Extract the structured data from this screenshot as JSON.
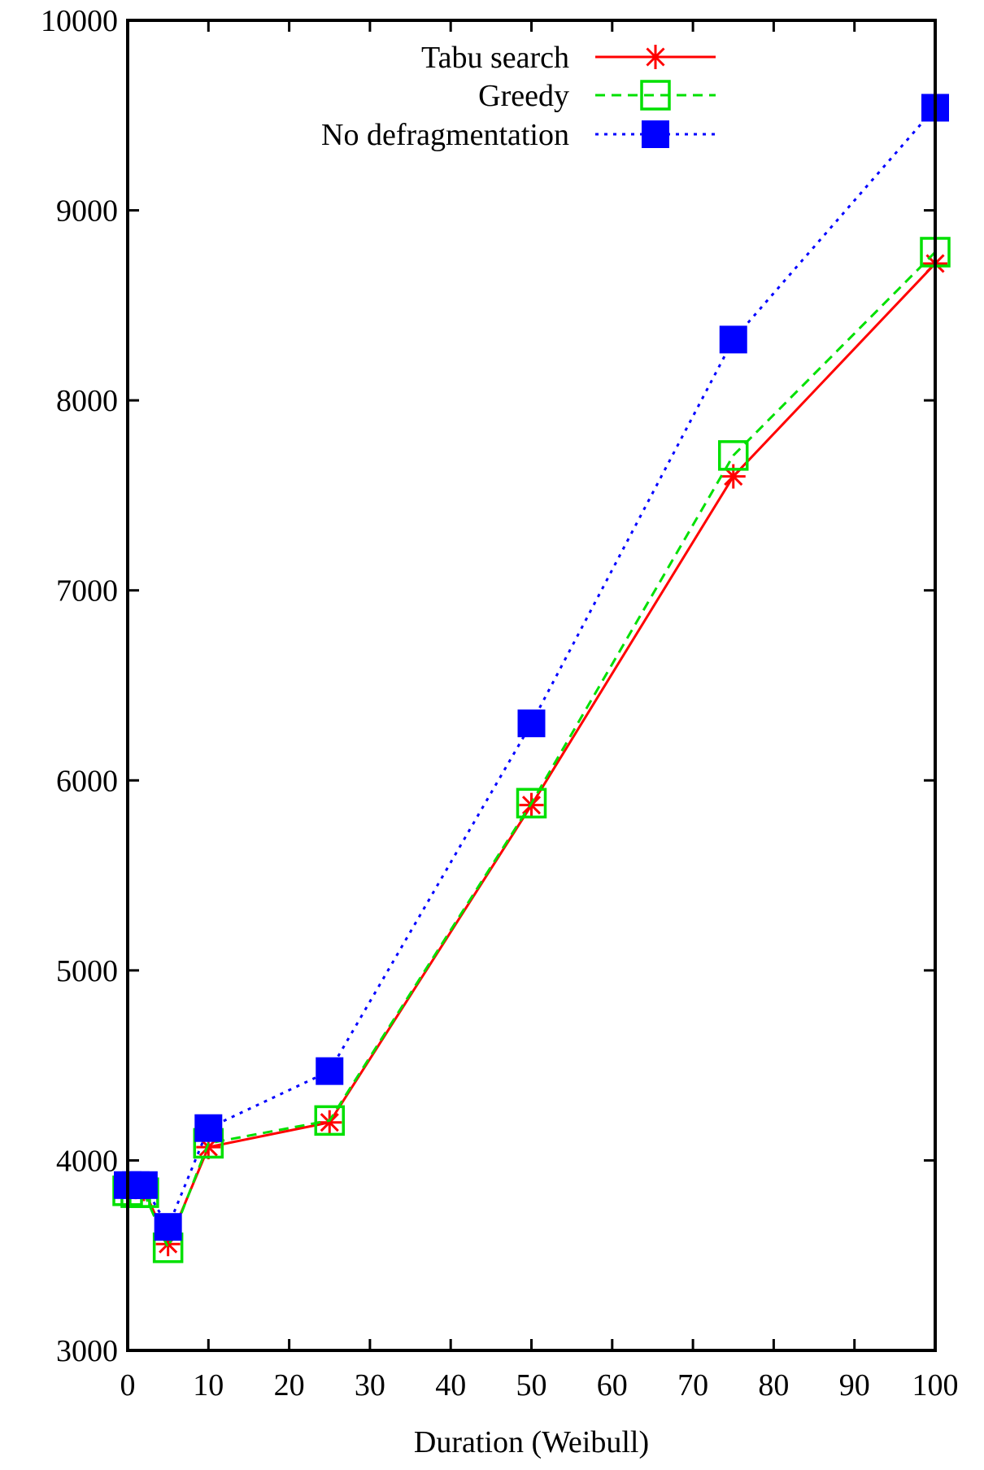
{
  "chart_data": {
    "type": "line",
    "title": "",
    "xlabel": "Duration (Weibull)",
    "ylabel": "",
    "xlim": [
      0,
      100
    ],
    "ylim": [
      3000,
      10000
    ],
    "xticks": [
      0,
      10,
      20,
      30,
      40,
      50,
      60,
      70,
      80,
      90,
      100
    ],
    "yticks": [
      3000,
      4000,
      5000,
      6000,
      7000,
      8000,
      9000,
      10000
    ],
    "xtick_labels": [
      "0",
      "10",
      "20",
      "30",
      "40",
      "50",
      "60",
      "70",
      "80",
      "90",
      "100"
    ],
    "ytick_labels": [
      "3000",
      "4000",
      "5000",
      "6000",
      "7000",
      "8000",
      "9000",
      "10000"
    ],
    "grid": false,
    "legend_position": "top-right",
    "series": [
      {
        "name": "Tabu search",
        "color": "#ff0000",
        "line_style": "solid",
        "marker": "asterisk",
        "x": [
          0,
          1,
          2,
          5,
          10,
          25,
          50,
          75,
          100
        ],
        "y": [
          3870,
          3860,
          3850,
          3560,
          4070,
          4200,
          5870,
          7600,
          8720
        ]
      },
      {
        "name": "Greedy",
        "color": "#00e000",
        "line_style": "dashed",
        "marker": "open-square",
        "x": [
          0,
          1,
          2,
          5,
          10,
          25,
          50,
          75,
          100
        ],
        "y": [
          3840,
          3830,
          3830,
          3540,
          4090,
          4210,
          5880,
          7710,
          8780
        ]
      },
      {
        "name": "No defragmentation",
        "color": "#0000ff",
        "line_style": "dotted",
        "marker": "filled-square",
        "x": [
          0,
          1,
          2,
          5,
          10,
          25,
          50,
          75,
          100
        ],
        "y": [
          3870,
          3870,
          3870,
          3650,
          4170,
          4470,
          6300,
          8320,
          9540
        ]
      }
    ]
  }
}
